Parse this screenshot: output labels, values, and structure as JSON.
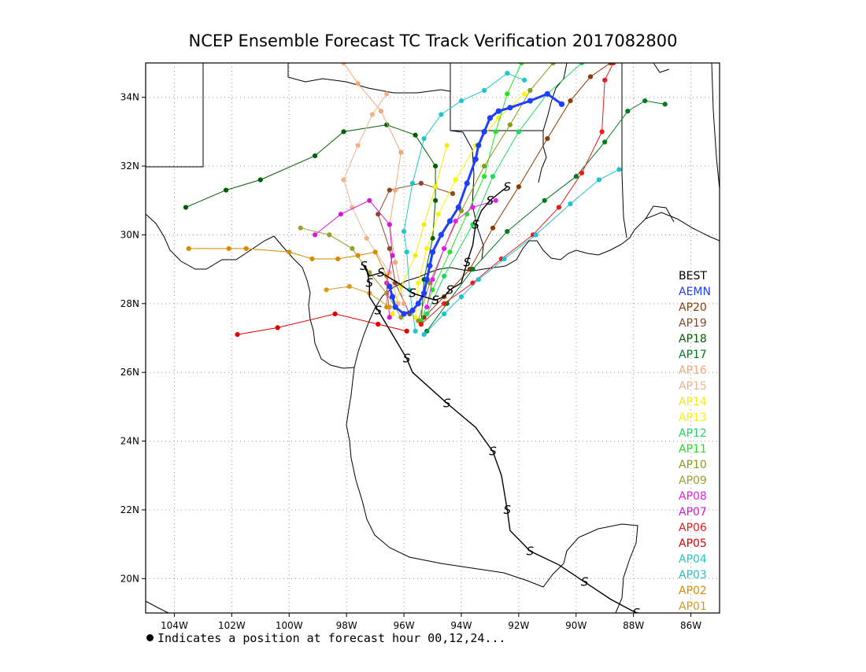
{
  "title": "NCEP Ensemble Forecast TC Track Verification 2017082800",
  "footnote": "Indicates a position at forecast hour 00,12,24...",
  "map": {
    "lon_range": [
      -105,
      -85
    ],
    "lat_range": [
      19,
      35
    ],
    "lon_ticks": [
      "104W",
      "102W",
      "100W",
      "98W",
      "96W",
      "94W",
      "92W",
      "90W",
      "88W",
      "86W"
    ],
    "lat_ticks": [
      "20N",
      "22N",
      "24N",
      "26N",
      "28N",
      "30N",
      "32N",
      "34N"
    ],
    "grid": true
  },
  "legend": [
    {
      "label": "BEST",
      "color": "#000000"
    },
    {
      "label": "AEMN",
      "color": "#1f3fff"
    },
    {
      "label": "AP20",
      "color": "#8b3a00"
    },
    {
      "label": "AP19",
      "color": "#8b4a2b"
    },
    {
      "label": "AP18",
      "color": "#005f00"
    },
    {
      "label": "AP17",
      "color": "#007a1f"
    },
    {
      "label": "AP16",
      "color": "#f4a87a"
    },
    {
      "label": "AP15",
      "color": "#f0b48c"
    },
    {
      "label": "AP14",
      "color": "#f2ee00"
    },
    {
      "label": "AP13",
      "color": "#f7f700"
    },
    {
      "label": "AP12",
      "color": "#1ed760"
    },
    {
      "label": "AP11",
      "color": "#22e522"
    },
    {
      "label": "AP10",
      "color": "#8a9b1a"
    },
    {
      "label": "AP09",
      "color": "#9aa028"
    },
    {
      "label": "AP08",
      "color": "#e81ee8"
    },
    {
      "label": "AP07",
      "color": "#d21ad2"
    },
    {
      "label": "AP06",
      "color": "#e81a1a"
    },
    {
      "label": "AP05",
      "color": "#e10000"
    },
    {
      "label": "AP04",
      "color": "#1ec8c8"
    },
    {
      "label": "AP03",
      "color": "#22c0d0"
    },
    {
      "label": "AP02",
      "color": "#d98a00"
    },
    {
      "label": "AP01",
      "color": "#d99a1a"
    }
  ],
  "tracks": [
    {
      "name": "BEST",
      "color": "#000000",
      "hurricane_symbols": true,
      "points": [
        [
          -87.9,
          19.0
        ],
        [
          -88.8,
          19.4
        ],
        [
          -89.7,
          19.9
        ],
        [
          -90.6,
          20.4
        ],
        [
          -91.6,
          20.8
        ],
        [
          -92.3,
          21.4
        ],
        [
          -92.4,
          22.0
        ],
        [
          -92.6,
          23.0
        ],
        [
          -92.9,
          23.7
        ],
        [
          -93.5,
          24.4
        ],
        [
          -94.5,
          25.1
        ],
        [
          -95.7,
          26.0
        ],
        [
          -95.9,
          26.4
        ],
        [
          -96.4,
          27.1
        ],
        [
          -96.9,
          27.8
        ],
        [
          -97.2,
          28.2
        ],
        [
          -97.2,
          28.6
        ],
        [
          -97.3,
          29.0
        ],
        [
          -97.4,
          29.1
        ],
        [
          -97.2,
          28.8
        ],
        [
          -96.8,
          28.9
        ],
        [
          -96.2,
          28.6
        ],
        [
          -95.7,
          28.3
        ],
        [
          -95.3,
          28.2
        ],
        [
          -94.9,
          28.1
        ],
        [
          -94.6,
          28.2
        ],
        [
          -94.4,
          28.4
        ],
        [
          -94.0,
          28.6
        ],
        [
          -93.8,
          29.2
        ],
        [
          -93.6,
          29.7
        ],
        [
          -93.5,
          30.3
        ],
        [
          -93.3,
          30.7
        ],
        [
          -93.0,
          31.0
        ],
        [
          -92.7,
          31.2
        ],
        [
          -92.4,
          31.4
        ]
      ]
    },
    {
      "name": "AEMN",
      "color": "#1f3fff",
      "points": [
        [
          -90.5,
          33.8
        ],
        [
          -91.0,
          34.1
        ],
        [
          -91.6,
          33.9
        ],
        [
          -92.3,
          33.7
        ],
        [
          -92.7,
          33.6
        ],
        [
          -93.0,
          33.4
        ],
        [
          -93.2,
          33.0
        ],
        [
          -93.4,
          32.6
        ],
        [
          -93.5,
          32.2
        ],
        [
          -93.8,
          31.5
        ],
        [
          -94.1,
          30.8
        ],
        [
          -94.4,
          30.4
        ],
        [
          -94.7,
          30.0
        ],
        [
          -95.0,
          29.5
        ],
        [
          -95.1,
          29.1
        ],
        [
          -95.2,
          28.7
        ],
        [
          -95.3,
          28.3
        ],
        [
          -95.5,
          28.0
        ],
        [
          -95.7,
          27.8
        ],
        [
          -96.0,
          27.7
        ],
        [
          -96.3,
          27.9
        ],
        [
          -96.4,
          28.2
        ],
        [
          -96.5,
          28.5
        ]
      ]
    },
    {
      "name": "AP01",
      "color": "#d99a1a",
      "points": [
        [
          -96.5,
          27.9
        ],
        [
          -97.2,
          28.3
        ],
        [
          -97.9,
          28.5
        ],
        [
          -98.7,
          28.4
        ]
      ]
    },
    {
      "name": "AP02",
      "color": "#d98a00",
      "points": [
        [
          -96.6,
          27.9
        ],
        [
          -96.6,
          28.8
        ],
        [
          -97.0,
          29.5
        ],
        [
          -97.6,
          29.4
        ],
        [
          -98.3,
          29.3
        ],
        [
          -99.2,
          29.3
        ],
        [
          -100.0,
          29.5
        ],
        [
          -101.5,
          29.6
        ],
        [
          -102.1,
          29.6
        ],
        [
          -103.5,
          29.6
        ]
      ]
    },
    {
      "name": "AP03",
      "color": "#22c0d0",
      "points": [
        [
          -95.3,
          27.1
        ],
        [
          -94.6,
          27.7
        ],
        [
          -94.0,
          28.2
        ],
        [
          -93.4,
          28.7
        ],
        [
          -92.5,
          29.3
        ],
        [
          -91.4,
          30.0
        ],
        [
          -90.2,
          30.9
        ],
        [
          -89.2,
          31.6
        ],
        [
          -88.5,
          31.9
        ]
      ]
    },
    {
      "name": "AP04",
      "color": "#1ec8c8",
      "points": [
        [
          -95.6,
          27.2
        ],
        [
          -95.8,
          28.4
        ],
        [
          -95.9,
          29.5
        ],
        [
          -96.0,
          30.1
        ],
        [
          -95.7,
          31.5
        ],
        [
          -95.3,
          32.8
        ],
        [
          -94.7,
          33.5
        ],
        [
          -94.0,
          33.9
        ],
        [
          -93.2,
          34.2
        ],
        [
          -92.4,
          34.7
        ],
        [
          -91.8,
          34.5
        ]
      ]
    },
    {
      "name": "AP05",
      "color": "#e10000",
      "points": [
        [
          -95.9,
          27.2
        ],
        [
          -96.9,
          27.4
        ],
        [
          -98.4,
          27.7
        ],
        [
          -100.4,
          27.3
        ],
        [
          -101.8,
          27.1
        ]
      ]
    },
    {
      "name": "AP06",
      "color": "#e81a1a",
      "points": [
        [
          -95.4,
          27.4
        ],
        [
          -94.6,
          28.0
        ],
        [
          -93.6,
          28.6
        ],
        [
          -92.6,
          29.3
        ],
        [
          -91.5,
          30.0
        ],
        [
          -90.6,
          30.8
        ],
        [
          -89.8,
          31.8
        ],
        [
          -89.1,
          33.0
        ],
        [
          -89.0,
          34.5
        ],
        [
          -88.7,
          35.0
        ]
      ]
    },
    {
      "name": "AP07",
      "color": "#d21ad2",
      "points": [
        [
          -96.5,
          27.6
        ],
        [
          -96.6,
          28.6
        ],
        [
          -96.4,
          29.4
        ],
        [
          -96.5,
          30.3
        ],
        [
          -97.2,
          31.0
        ],
        [
          -98.2,
          30.6
        ],
        [
          -99.1,
          30.0
        ]
      ]
    },
    {
      "name": "AP08",
      "color": "#e81ee8",
      "points": [
        [
          -95.2,
          27.9
        ],
        [
          -95.0,
          28.7
        ],
        [
          -94.6,
          29.6
        ],
        [
          -94.2,
          30.4
        ],
        [
          -93.6,
          30.8
        ],
        [
          -92.8,
          31.0
        ]
      ]
    },
    {
      "name": "AP09",
      "color": "#9aa028",
      "points": [
        [
          -96.1,
          27.6
        ],
        [
          -96.6,
          28.3
        ],
        [
          -97.2,
          28.9
        ],
        [
          -97.8,
          29.6
        ],
        [
          -98.6,
          30.0
        ],
        [
          -99.6,
          30.2
        ]
      ]
    },
    {
      "name": "AP10",
      "color": "#8a9b1a",
      "points": [
        [
          -95.5,
          27.5
        ],
        [
          -95.1,
          28.6
        ],
        [
          -94.6,
          29.6
        ],
        [
          -94.0,
          30.7
        ],
        [
          -93.2,
          32.0
        ],
        [
          -92.3,
          33.2
        ],
        [
          -91.6,
          34.2
        ],
        [
          -90.8,
          35.0
        ]
      ]
    },
    {
      "name": "AP11",
      "color": "#22e522",
      "points": [
        [
          -95.4,
          27.5
        ],
        [
          -95.0,
          28.4
        ],
        [
          -94.4,
          29.5
        ],
        [
          -93.8,
          30.6
        ],
        [
          -93.2,
          31.7
        ],
        [
          -92.8,
          33.0
        ],
        [
          -92.4,
          34.1
        ],
        [
          -91.9,
          35.0
        ]
      ]
    },
    {
      "name": "AP12",
      "color": "#1ed760",
      "points": [
        [
          -95.2,
          27.7
        ],
        [
          -94.6,
          28.8
        ],
        [
          -93.6,
          30.3
        ],
        [
          -92.9,
          31.7
        ],
        [
          -92.0,
          33.0
        ],
        [
          -91.0,
          34.1
        ],
        [
          -89.8,
          35.0
        ]
      ]
    },
    {
      "name": "AP13",
      "color": "#f7f700",
      "points": [
        [
          -95.6,
          27.6
        ],
        [
          -95.5,
          28.6
        ],
        [
          -95.2,
          29.6
        ],
        [
          -94.8,
          30.6
        ],
        [
          -94.2,
          31.6
        ],
        [
          -93.5,
          32.6
        ],
        [
          -92.7,
          33.4
        ],
        [
          -91.8,
          34.1
        ]
      ]
    },
    {
      "name": "AP14",
      "color": "#f2ee00",
      "points": [
        [
          -96.4,
          27.7
        ],
        [
          -96.1,
          28.5
        ],
        [
          -95.6,
          29.4
        ],
        [
          -95.3,
          30.3
        ],
        [
          -94.9,
          31.4
        ],
        [
          -94.5,
          32.6
        ]
      ]
    },
    {
      "name": "AP15",
      "color": "#f0b48c",
      "points": [
        [
          -96.2,
          28.0
        ],
        [
          -96.5,
          28.9
        ],
        [
          -97.3,
          29.9
        ],
        [
          -97.8,
          30.8
        ],
        [
          -98.1,
          31.6
        ],
        [
          -97.6,
          32.6
        ],
        [
          -97.1,
          33.5
        ],
        [
          -96.6,
          34.1
        ]
      ]
    },
    {
      "name": "AP16",
      "color": "#f4a87a",
      "points": [
        [
          -96.0,
          28.0
        ],
        [
          -96.3,
          29.2
        ],
        [
          -96.5,
          30.3
        ],
        [
          -96.3,
          31.3
        ],
        [
          -96.1,
          32.4
        ],
        [
          -96.8,
          33.6
        ],
        [
          -97.6,
          34.4
        ],
        [
          -98.1,
          35.0
        ]
      ]
    },
    {
      "name": "AP17",
      "color": "#007a1f",
      "points": [
        [
          -95.2,
          27.2
        ],
        [
          -94.5,
          28.0
        ],
        [
          -93.6,
          29.0
        ],
        [
          -92.4,
          30.1
        ],
        [
          -91.1,
          31.0
        ],
        [
          -90.0,
          31.7
        ],
        [
          -89.0,
          32.7
        ],
        [
          -88.2,
          33.6
        ],
        [
          -87.6,
          33.9
        ],
        [
          -86.9,
          33.8
        ]
      ]
    },
    {
      "name": "AP18",
      "color": "#005f00",
      "points": [
        [
          -95.4,
          27.4
        ],
        [
          -95.3,
          28.7
        ],
        [
          -95.0,
          29.9
        ],
        [
          -94.9,
          31.0
        ],
        [
          -94.9,
          32.0
        ],
        [
          -95.6,
          32.9
        ],
        [
          -96.6,
          33.2
        ],
        [
          -98.1,
          33.0
        ],
        [
          -99.1,
          32.3
        ],
        [
          -101.0,
          31.6
        ],
        [
          -102.2,
          31.3
        ],
        [
          -103.6,
          30.8
        ]
      ]
    },
    {
      "name": "AP19",
      "color": "#8b4a2b",
      "points": [
        [
          -95.8,
          27.7
        ],
        [
          -96.3,
          28.6
        ],
        [
          -96.5,
          29.6
        ],
        [
          -96.9,
          30.6
        ],
        [
          -96.5,
          31.3
        ],
        [
          -95.4,
          31.5
        ],
        [
          -94.3,
          31.2
        ]
      ]
    },
    {
      "name": "AP20",
      "color": "#8b3a00",
      "points": [
        [
          -95.3,
          27.6
        ],
        [
          -94.6,
          28.2
        ],
        [
          -93.7,
          29.0
        ],
        [
          -92.9,
          30.2
        ],
        [
          -92.0,
          31.4
        ],
        [
          -91.0,
          32.8
        ],
        [
          -90.2,
          33.9
        ],
        [
          -89.5,
          34.6
        ],
        [
          -88.8,
          35.0
        ]
      ]
    }
  ]
}
